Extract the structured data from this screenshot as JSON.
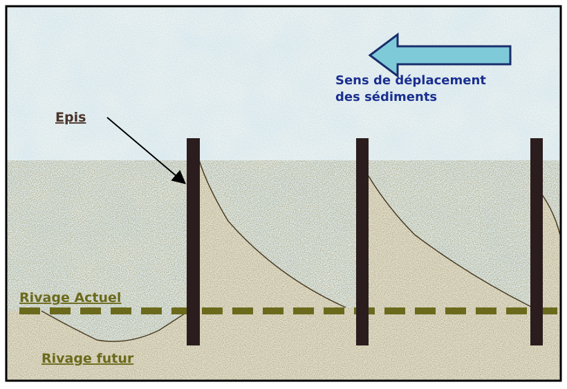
{
  "labels": {
    "groyne": "Epis",
    "direction": [
      "Sens de déplacement",
      "des sédiments"
    ],
    "current_shore": "Rivage Actuel",
    "future_shore": "Rivage futur"
  }
}
